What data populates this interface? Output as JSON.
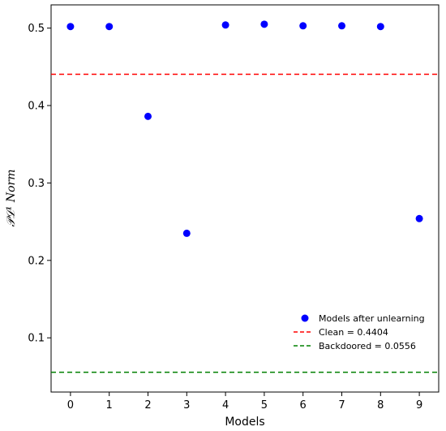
{
  "chart_data": {
    "type": "scatter",
    "xlabel": "Models",
    "ylabel": "𝒫ℒ¹  Norm",
    "xlim": [
      -0.5,
      9.5
    ],
    "ylim": [
      0.03,
      0.53
    ],
    "xticks": [
      0,
      1,
      2,
      3,
      4,
      5,
      6,
      7,
      8,
      9
    ],
    "yticks": [
      0.1,
      0.2,
      0.3,
      0.4,
      0.5
    ],
    "grid": false,
    "legend_position": "bottom-right",
    "series": [
      {
        "name": "Models after unlearning",
        "color": "#0000ff",
        "x": [
          0,
          1,
          2,
          3,
          4,
          5,
          6,
          7,
          8,
          9
        ],
        "y": [
          0.502,
          0.502,
          0.386,
          0.235,
          0.504,
          0.505,
          0.503,
          0.503,
          0.502,
          0.254
        ]
      }
    ],
    "reference_lines": [
      {
        "name": "Clean = 0.4404",
        "value": 0.4404,
        "color": "#ff0000",
        "style": "dashed"
      },
      {
        "name": "Backdoored = 0.0556",
        "value": 0.0556,
        "color": "#008000",
        "style": "dashed"
      }
    ]
  }
}
